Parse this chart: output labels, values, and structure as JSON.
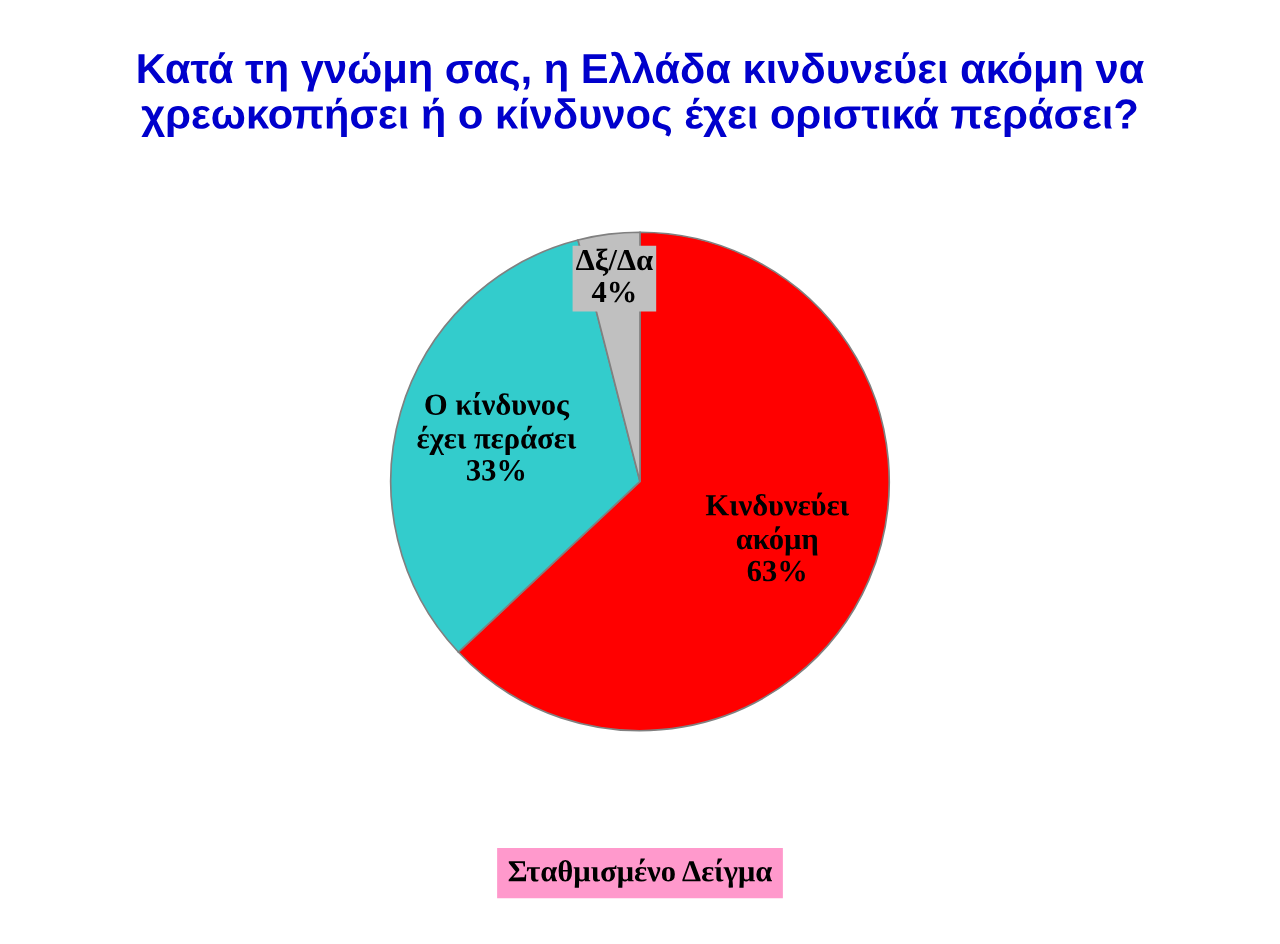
{
  "chart_data": {
    "type": "pie",
    "title": "Κατά τη γνώμη σας, η Ελλάδα κινδυνεύει ακόμη να χρεωκοπήσει ή ο κίνδυνος έχει οριστικά περάσει?",
    "categories": [
      "Κινδυνεύει ακόμη",
      "Ο κίνδυνος έχει περάσει",
      "Δξ/Δα"
    ],
    "values": [
      63,
      33,
      4
    ],
    "colors": [
      "#ff0000",
      "#33cccc",
      "#c0c0c0"
    ],
    "value_labels": [
      "63%",
      "33%",
      "4%"
    ],
    "annotations": [
      "Σταθμισμένο Δείγμα"
    ],
    "legend": false
  }
}
